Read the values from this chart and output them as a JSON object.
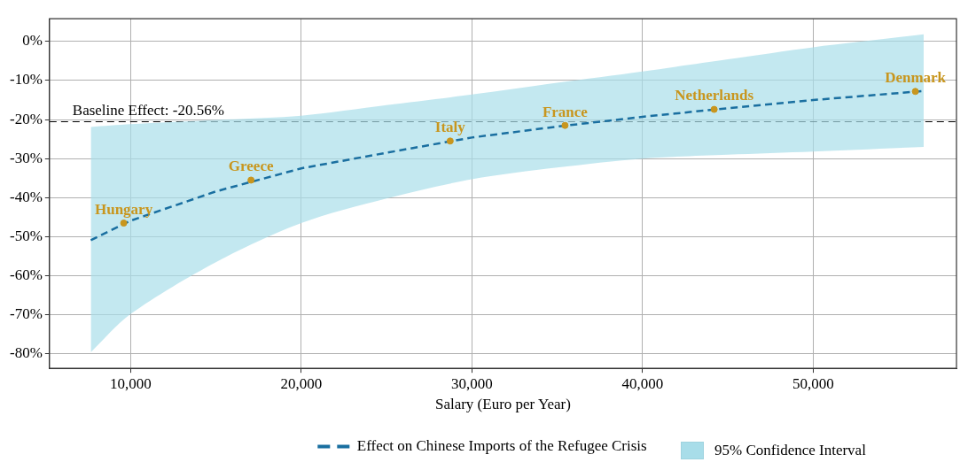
{
  "chart_data": {
    "type": "line",
    "xlabel": "Salary (Euro per Year)",
    "xlim": [
      5250,
      58400
    ],
    "xticks": [
      {
        "value": 10000,
        "label": "10,000"
      },
      {
        "value": 20000,
        "label": "20,000"
      },
      {
        "value": 30000,
        "label": "30,000"
      },
      {
        "value": 40000,
        "label": "40,000"
      },
      {
        "value": 50000,
        "label": "50,000"
      }
    ],
    "ylim": [
      -83.7,
      5.8
    ],
    "yticks": [
      {
        "value": -80,
        "label": "-80%"
      },
      {
        "value": -70,
        "label": "-70%"
      },
      {
        "value": -60,
        "label": "-60%"
      },
      {
        "value": -50,
        "label": "-50%"
      },
      {
        "value": -40,
        "label": "-40%"
      },
      {
        "value": -30,
        "label": "-30%"
      },
      {
        "value": -20,
        "label": "-20%"
      },
      {
        "value": -10,
        "label": "-10%"
      },
      {
        "value": 0,
        "label": "0%"
      }
    ],
    "grid": true,
    "legend": "bottom",
    "series": [
      {
        "name": "Effect on Chinese Imports of the Refugee Crisis",
        "color": "#1a6fa0",
        "line_style": "dashed",
        "marker": "none",
        "x": [
          7670,
          10000,
          15000,
          20000,
          25000,
          30000,
          35000,
          40000,
          45000,
          50000,
          56480
        ],
        "values": [
          -50.9,
          -45.9,
          -38.4,
          -32.5,
          -28.5,
          -24.6,
          -21.8,
          -19.3,
          -17.1,
          -15.0,
          -12.7
        ],
        "lower": [
          -79.6,
          -69.8,
          -56.5,
          -46.5,
          -40.2,
          -35.3,
          -32.3,
          -30.0,
          -29.0,
          -28.2,
          -27.0
        ],
        "upper": [
          -21.9,
          -21.2,
          -20.1,
          -19.0,
          -16.3,
          -13.6,
          -10.6,
          -7.7,
          -4.6,
          -1.5,
          1.8
        ]
      },
      {
        "type": "scatter",
        "color": "#c8961e",
        "marker": "circle",
        "x": [
          9600,
          17060,
          28730,
          35460,
          44200,
          55990
        ],
        "values": [
          -46.5,
          -35.5,
          -25.5,
          -21.5,
          -17.4,
          -12.8
        ]
      }
    ],
    "ref_lines": [
      {
        "axis": "y",
        "value": -20.56,
        "label": "Baseline Effect: -20.56%",
        "color": "#000000",
        "line_style": "dashed"
      }
    ],
    "annotations": [
      "95% Confidence Interval",
      {
        "text": "Hungary",
        "x": 9600,
        "y": -46.5
      },
      {
        "text": "Greece",
        "x": 17060,
        "y": -35.5
      },
      {
        "text": "Italy",
        "x": 28730,
        "y": -25.5
      },
      {
        "text": "France",
        "x": 35460,
        "y": -21.5
      },
      {
        "text": "Netherlands",
        "x": 44200,
        "y": -17.4
      },
      {
        "text": "Denmark",
        "x": 55990,
        "y": -12.8
      }
    ]
  }
}
